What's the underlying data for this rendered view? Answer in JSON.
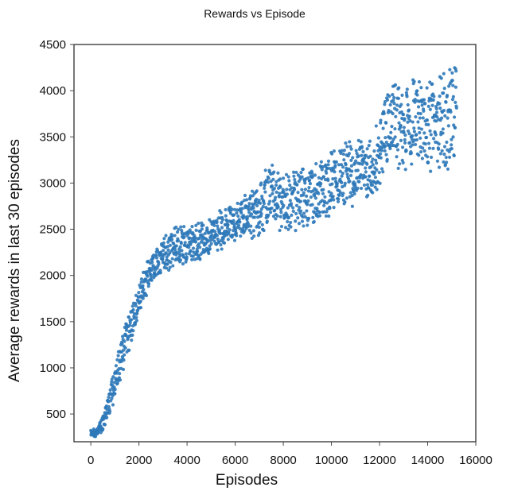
{
  "chart_data": {
    "type": "scatter",
    "title": "Rewards vs Episode",
    "xlabel": "Episodes",
    "ylabel": "Average rewards in last 30 episodes",
    "xlim": [
      -700,
      16000
    ],
    "ylim": [
      200,
      4500
    ],
    "xticks": [
      0,
      2000,
      4000,
      6000,
      8000,
      10000,
      12000,
      14000,
      16000
    ],
    "yticks": [
      500,
      1000,
      1500,
      2000,
      2500,
      3000,
      3500,
      4000,
      4500
    ],
    "grid": false,
    "legend": "none",
    "series_color": "#2f79b9",
    "series": [
      {
        "x": [
          0,
          200,
          400,
          600,
          800,
          1000,
          1200,
          1400,
          1600,
          1800,
          2000,
          2200,
          2400,
          2600,
          2800,
          3000,
          3200,
          3400,
          3600,
          3800,
          4000,
          4200,
          4400,
          4600,
          4800,
          5000,
          5200,
          5400,
          5600,
          5800,
          6000,
          6200,
          6400,
          6600,
          6800,
          7000,
          7200,
          7400,
          7600,
          7800,
          8000,
          8200,
          8400,
          8600,
          8800,
          9000,
          9200,
          9400,
          9600,
          9800,
          10000,
          10200,
          10400,
          10600,
          10800,
          11000,
          11200,
          11400,
          11600,
          11800,
          12000,
          12200,
          12400,
          12600,
          12800,
          13000,
          13200,
          13400,
          13600,
          13800,
          14000,
          14200,
          14400,
          14600,
          14800,
          15000,
          15200
        ],
        "y": [
          300,
          280,
          350,
          480,
          650,
          850,
          1050,
          1250,
          1400,
          1550,
          1750,
          1900,
          2000,
          2100,
          2150,
          2200,
          2250,
          2300,
          2300,
          2350,
          2300,
          2350,
          2350,
          2400,
          2400,
          2450,
          2450,
          2500,
          2500,
          2550,
          2550,
          2600,
          2650,
          2650,
          2700,
          2750,
          2800,
          2850,
          2850,
          2800,
          2750,
          2800,
          2850,
          2800,
          2850,
          2850,
          2900,
          2900,
          2950,
          2950,
          3000,
          3050,
          3100,
          3100,
          3050,
          3100,
          3150,
          3150,
          3100,
          3150,
          3350,
          3600,
          3650,
          3650,
          3600,
          3550,
          3600,
          3650,
          3650,
          3600,
          3600,
          3550,
          3600,
          3650,
          3650,
          3700,
          3900
        ],
        "spread": [
          40,
          40,
          60,
          90,
          120,
          150,
          180,
          190,
          200,
          190,
          170,
          170,
          160,
          160,
          150,
          160,
          170,
          180,
          180,
          170,
          170,
          170,
          170,
          170,
          170,
          170,
          170,
          170,
          170,
          170,
          170,
          190,
          200,
          220,
          250,
          260,
          280,
          280,
          280,
          280,
          280,
          280,
          280,
          280,
          280,
          280,
          280,
          280,
          280,
          290,
          300,
          300,
          300,
          310,
          310,
          320,
          320,
          320,
          320,
          320,
          330,
          340,
          350,
          360,
          370,
          380,
          390,
          400,
          400,
          410,
          420,
          430,
          440,
          450,
          460,
          470,
          420
        ]
      }
    ]
  }
}
